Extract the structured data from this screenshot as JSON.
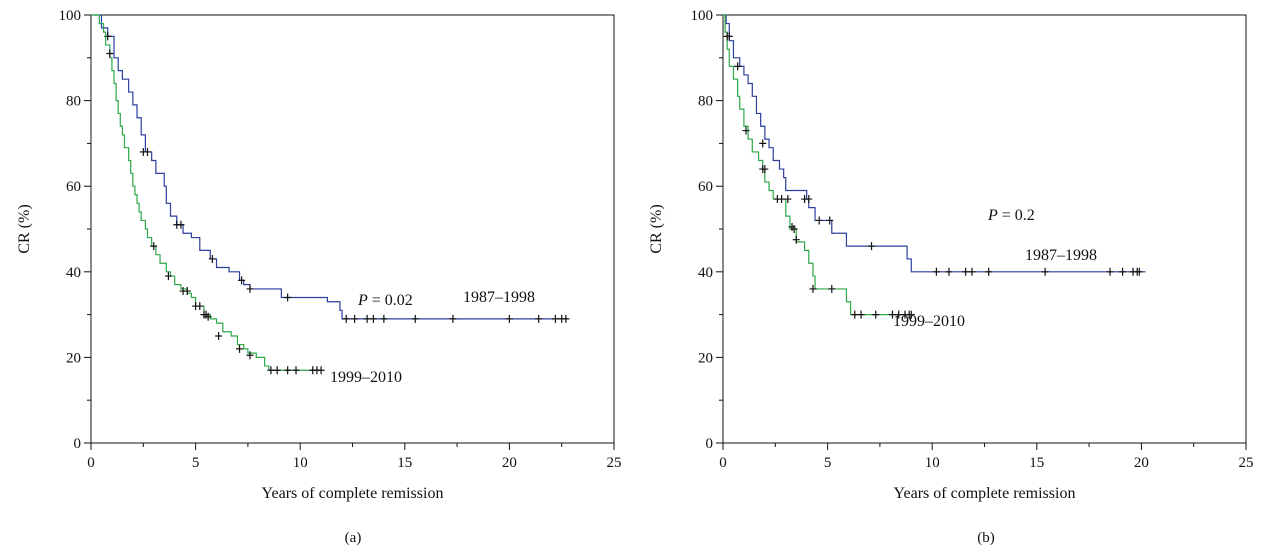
{
  "chart_data": [
    {
      "type": "line",
      "subtype": "kaplan-meier step",
      "panel_label": "(a)",
      "xlabel": "Years of complete remission",
      "ylabel": "CR (%)",
      "xlim": [
        0,
        25
      ],
      "ylim": [
        0,
        100
      ],
      "xticks": [
        0,
        5,
        10,
        15,
        20,
        25
      ],
      "yticks": [
        0,
        20,
        40,
        60,
        80,
        100
      ],
      "annotation": {
        "p_label": "P",
        "p_rest": " = 0.02"
      },
      "series": [
        {
          "name": "1987–1998",
          "color": "#2b3f9e",
          "steps": [
            [
              0,
              100
            ],
            [
              0.3,
              100
            ],
            [
              0.5,
              97
            ],
            [
              0.8,
              95
            ],
            [
              1.1,
              90
            ],
            [
              1.3,
              87
            ],
            [
              1.5,
              85
            ],
            [
              1.8,
              82
            ],
            [
              2.0,
              79
            ],
            [
              2.2,
              76
            ],
            [
              2.4,
              72
            ],
            [
              2.6,
              68
            ],
            [
              2.9,
              66
            ],
            [
              3.1,
              63
            ],
            [
              3.5,
              60
            ],
            [
              3.6,
              56
            ],
            [
              3.8,
              53
            ],
            [
              4.1,
              51
            ],
            [
              4.4,
              49
            ],
            [
              4.8,
              48
            ],
            [
              5.2,
              45
            ],
            [
              5.7,
              43
            ],
            [
              6.0,
              41
            ],
            [
              6.6,
              40
            ],
            [
              7.1,
              38
            ],
            [
              7.3,
              37
            ],
            [
              7.6,
              36
            ],
            [
              9.1,
              34
            ],
            [
              11.3,
              33
            ],
            [
              11.9,
              31
            ],
            [
              12.0,
              29
            ],
            [
              22.8,
              29
            ]
          ],
          "censor": [
            [
              0.8,
              95
            ],
            [
              2.5,
              68
            ],
            [
              2.7,
              68
            ],
            [
              4.1,
              51
            ],
            [
              4.3,
              51
            ],
            [
              5.8,
              43
            ],
            [
              7.2,
              38
            ],
            [
              7.6,
              36
            ],
            [
              9.4,
              34
            ],
            [
              12.2,
              29
            ],
            [
              12.6,
              29
            ],
            [
              13.2,
              29
            ],
            [
              13.5,
              29
            ],
            [
              14.0,
              29
            ],
            [
              15.5,
              29
            ],
            [
              17.3,
              29
            ],
            [
              20.0,
              29
            ],
            [
              21.4,
              29
            ],
            [
              22.2,
              29
            ],
            [
              22.5,
              29
            ],
            [
              22.7,
              29
            ]
          ],
          "label_text": "1987–1998"
        },
        {
          "name": "1999–2010",
          "color": "#2ea84a",
          "steps": [
            [
              0,
              100
            ],
            [
              0.4,
              98
            ],
            [
              0.6,
              96
            ],
            [
              0.7,
              93
            ],
            [
              0.9,
              90
            ],
            [
              1.0,
              87
            ],
            [
              1.1,
              84
            ],
            [
              1.2,
              80
            ],
            [
              1.3,
              77
            ],
            [
              1.4,
              74
            ],
            [
              1.5,
              72
            ],
            [
              1.6,
              69
            ],
            [
              1.8,
              66
            ],
            [
              1.9,
              63
            ],
            [
              2.0,
              60
            ],
            [
              2.1,
              58
            ],
            [
              2.2,
              56
            ],
            [
              2.3,
              54
            ],
            [
              2.4,
              52
            ],
            [
              2.6,
              50
            ],
            [
              2.7,
              48
            ],
            [
              2.9,
              46
            ],
            [
              3.1,
              44
            ],
            [
              3.3,
              42
            ],
            [
              3.6,
              40
            ],
            [
              3.8,
              39
            ],
            [
              4.0,
              37
            ],
            [
              4.3,
              36
            ],
            [
              4.6,
              35
            ],
            [
              4.8,
              34
            ],
            [
              5.0,
              32
            ],
            [
              5.4,
              30
            ],
            [
              5.7,
              29
            ],
            [
              6.0,
              28
            ],
            [
              6.3,
              26
            ],
            [
              6.7,
              25
            ],
            [
              7.0,
              23
            ],
            [
              7.3,
              22
            ],
            [
              7.5,
              21
            ],
            [
              7.9,
              20
            ],
            [
              8.3,
              18
            ],
            [
              8.5,
              17
            ],
            [
              11.0,
              17
            ]
          ],
          "censor": [
            [
              0.9,
              91
            ],
            [
              3.0,
              46
            ],
            [
              3.7,
              39
            ],
            [
              4.4,
              35.5
            ],
            [
              4.6,
              35.5
            ],
            [
              5.0,
              32
            ],
            [
              5.2,
              32
            ],
            [
              5.4,
              30
            ],
            [
              5.5,
              30
            ],
            [
              5.6,
              29.5
            ],
            [
              6.1,
              25
            ],
            [
              7.1,
              22
            ],
            [
              7.6,
              20.5
            ],
            [
              8.6,
              17
            ],
            [
              8.9,
              17
            ],
            [
              9.4,
              17
            ],
            [
              9.8,
              17
            ],
            [
              10.6,
              17
            ],
            [
              10.8,
              17
            ],
            [
              11.0,
              17
            ]
          ],
          "label_text": "1999–2010"
        }
      ]
    },
    {
      "type": "line",
      "subtype": "kaplan-meier step",
      "panel_label": "(b)",
      "xlabel": "Years of complete remission",
      "ylabel": "CR (%)",
      "xlim": [
        0,
        25
      ],
      "ylim": [
        0,
        100
      ],
      "xticks": [
        0,
        5,
        10,
        15,
        20,
        25
      ],
      "yticks": [
        0,
        20,
        40,
        60,
        80,
        100
      ],
      "annotation": {
        "p_label": "P",
        "p_rest": " = 0.2"
      },
      "series": [
        {
          "name": "1987–1998",
          "color": "#2b3f9e",
          "steps": [
            [
              0,
              100
            ],
            [
              0.15,
              98
            ],
            [
              0.3,
              94
            ],
            [
              0.5,
              90
            ],
            [
              0.8,
              88
            ],
            [
              1.0,
              86
            ],
            [
              1.2,
              84
            ],
            [
              1.4,
              81
            ],
            [
              1.6,
              77
            ],
            [
              1.8,
              74
            ],
            [
              2.0,
              71
            ],
            [
              2.2,
              69
            ],
            [
              2.4,
              66
            ],
            [
              2.7,
              64
            ],
            [
              2.9,
              62
            ],
            [
              3.0,
              59
            ],
            [
              4.0,
              57
            ],
            [
              4.1,
              55
            ],
            [
              4.4,
              52
            ],
            [
              5.2,
              49
            ],
            [
              5.9,
              46
            ],
            [
              8.8,
              43
            ],
            [
              9.0,
              40
            ],
            [
              20.2,
              40
            ]
          ],
          "censor": [
            [
              0.3,
              95
            ],
            [
              0.7,
              88
            ],
            [
              1.9,
              70
            ],
            [
              3.9,
              57
            ],
            [
              4.1,
              57
            ],
            [
              4.6,
              52
            ],
            [
              5.1,
              52
            ],
            [
              7.1,
              46
            ],
            [
              10.2,
              40
            ],
            [
              10.8,
              40
            ],
            [
              11.6,
              40
            ],
            [
              11.9,
              40
            ],
            [
              12.7,
              40
            ],
            [
              15.4,
              40
            ],
            [
              18.5,
              40
            ],
            [
              19.1,
              40
            ],
            [
              19.6,
              40
            ],
            [
              19.8,
              40
            ],
            [
              19.9,
              40
            ]
          ],
          "label_text": "1987–1998"
        },
        {
          "name": "1999–2010",
          "color": "#2ea84a",
          "steps": [
            [
              0,
              100
            ],
            [
              0.1,
              96
            ],
            [
              0.2,
              92
            ],
            [
              0.3,
              88
            ],
            [
              0.5,
              85
            ],
            [
              0.7,
              81
            ],
            [
              0.8,
              78
            ],
            [
              1.0,
              74
            ],
            [
              1.2,
              71
            ],
            [
              1.4,
              68
            ],
            [
              1.7,
              66
            ],
            [
              1.9,
              64
            ],
            [
              2.0,
              61
            ],
            [
              2.2,
              59
            ],
            [
              2.4,
              57
            ],
            [
              3.0,
              53
            ],
            [
              3.2,
              50
            ],
            [
              3.5,
              47
            ],
            [
              3.9,
              45
            ],
            [
              4.1,
              42
            ],
            [
              4.3,
              39
            ],
            [
              4.4,
              36
            ],
            [
              5.9,
              33
            ],
            [
              6.1,
              30
            ],
            [
              9.1,
              30
            ]
          ],
          "censor": [
            [
              0.2,
              95
            ],
            [
              1.1,
              73
            ],
            [
              1.9,
              64
            ],
            [
              2.0,
              64
            ],
            [
              2.6,
              57
            ],
            [
              2.8,
              57
            ],
            [
              3.1,
              57
            ],
            [
              3.3,
              50.5
            ],
            [
              3.4,
              50
            ],
            [
              3.5,
              47.5
            ],
            [
              4.3,
              36
            ],
            [
              5.2,
              36
            ],
            [
              6.3,
              30
            ],
            [
              6.6,
              30
            ],
            [
              7.3,
              30
            ],
            [
              8.1,
              30
            ],
            [
              8.4,
              30
            ],
            [
              8.7,
              30
            ],
            [
              8.9,
              30
            ],
            [
              9.0,
              30
            ]
          ],
          "label_text": "1999–2010"
        }
      ]
    }
  ]
}
